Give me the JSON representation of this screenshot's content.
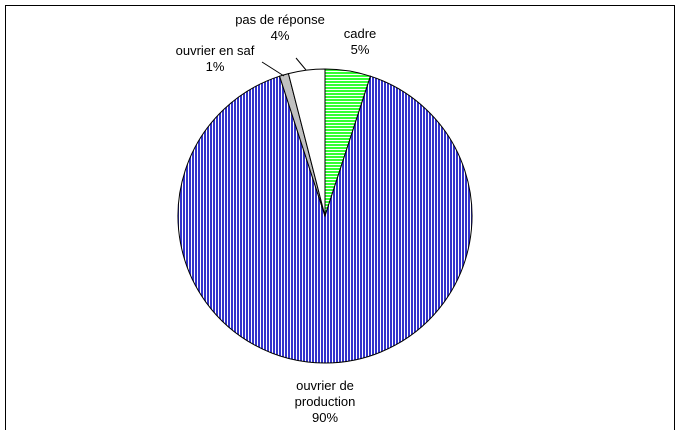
{
  "chart_data": {
    "type": "pie",
    "categories": [
      "cadre",
      "ouvrier de production",
      "ouvrier en saf",
      "pas de réponse"
    ],
    "values": [
      5,
      90,
      1,
      4
    ],
    "value_labels": [
      "5%",
      "90%",
      "1%",
      "4%"
    ],
    "colors": [
      "#33ff33",
      "#3333cc",
      "#c0c0c0",
      "#ffffff"
    ]
  }
}
